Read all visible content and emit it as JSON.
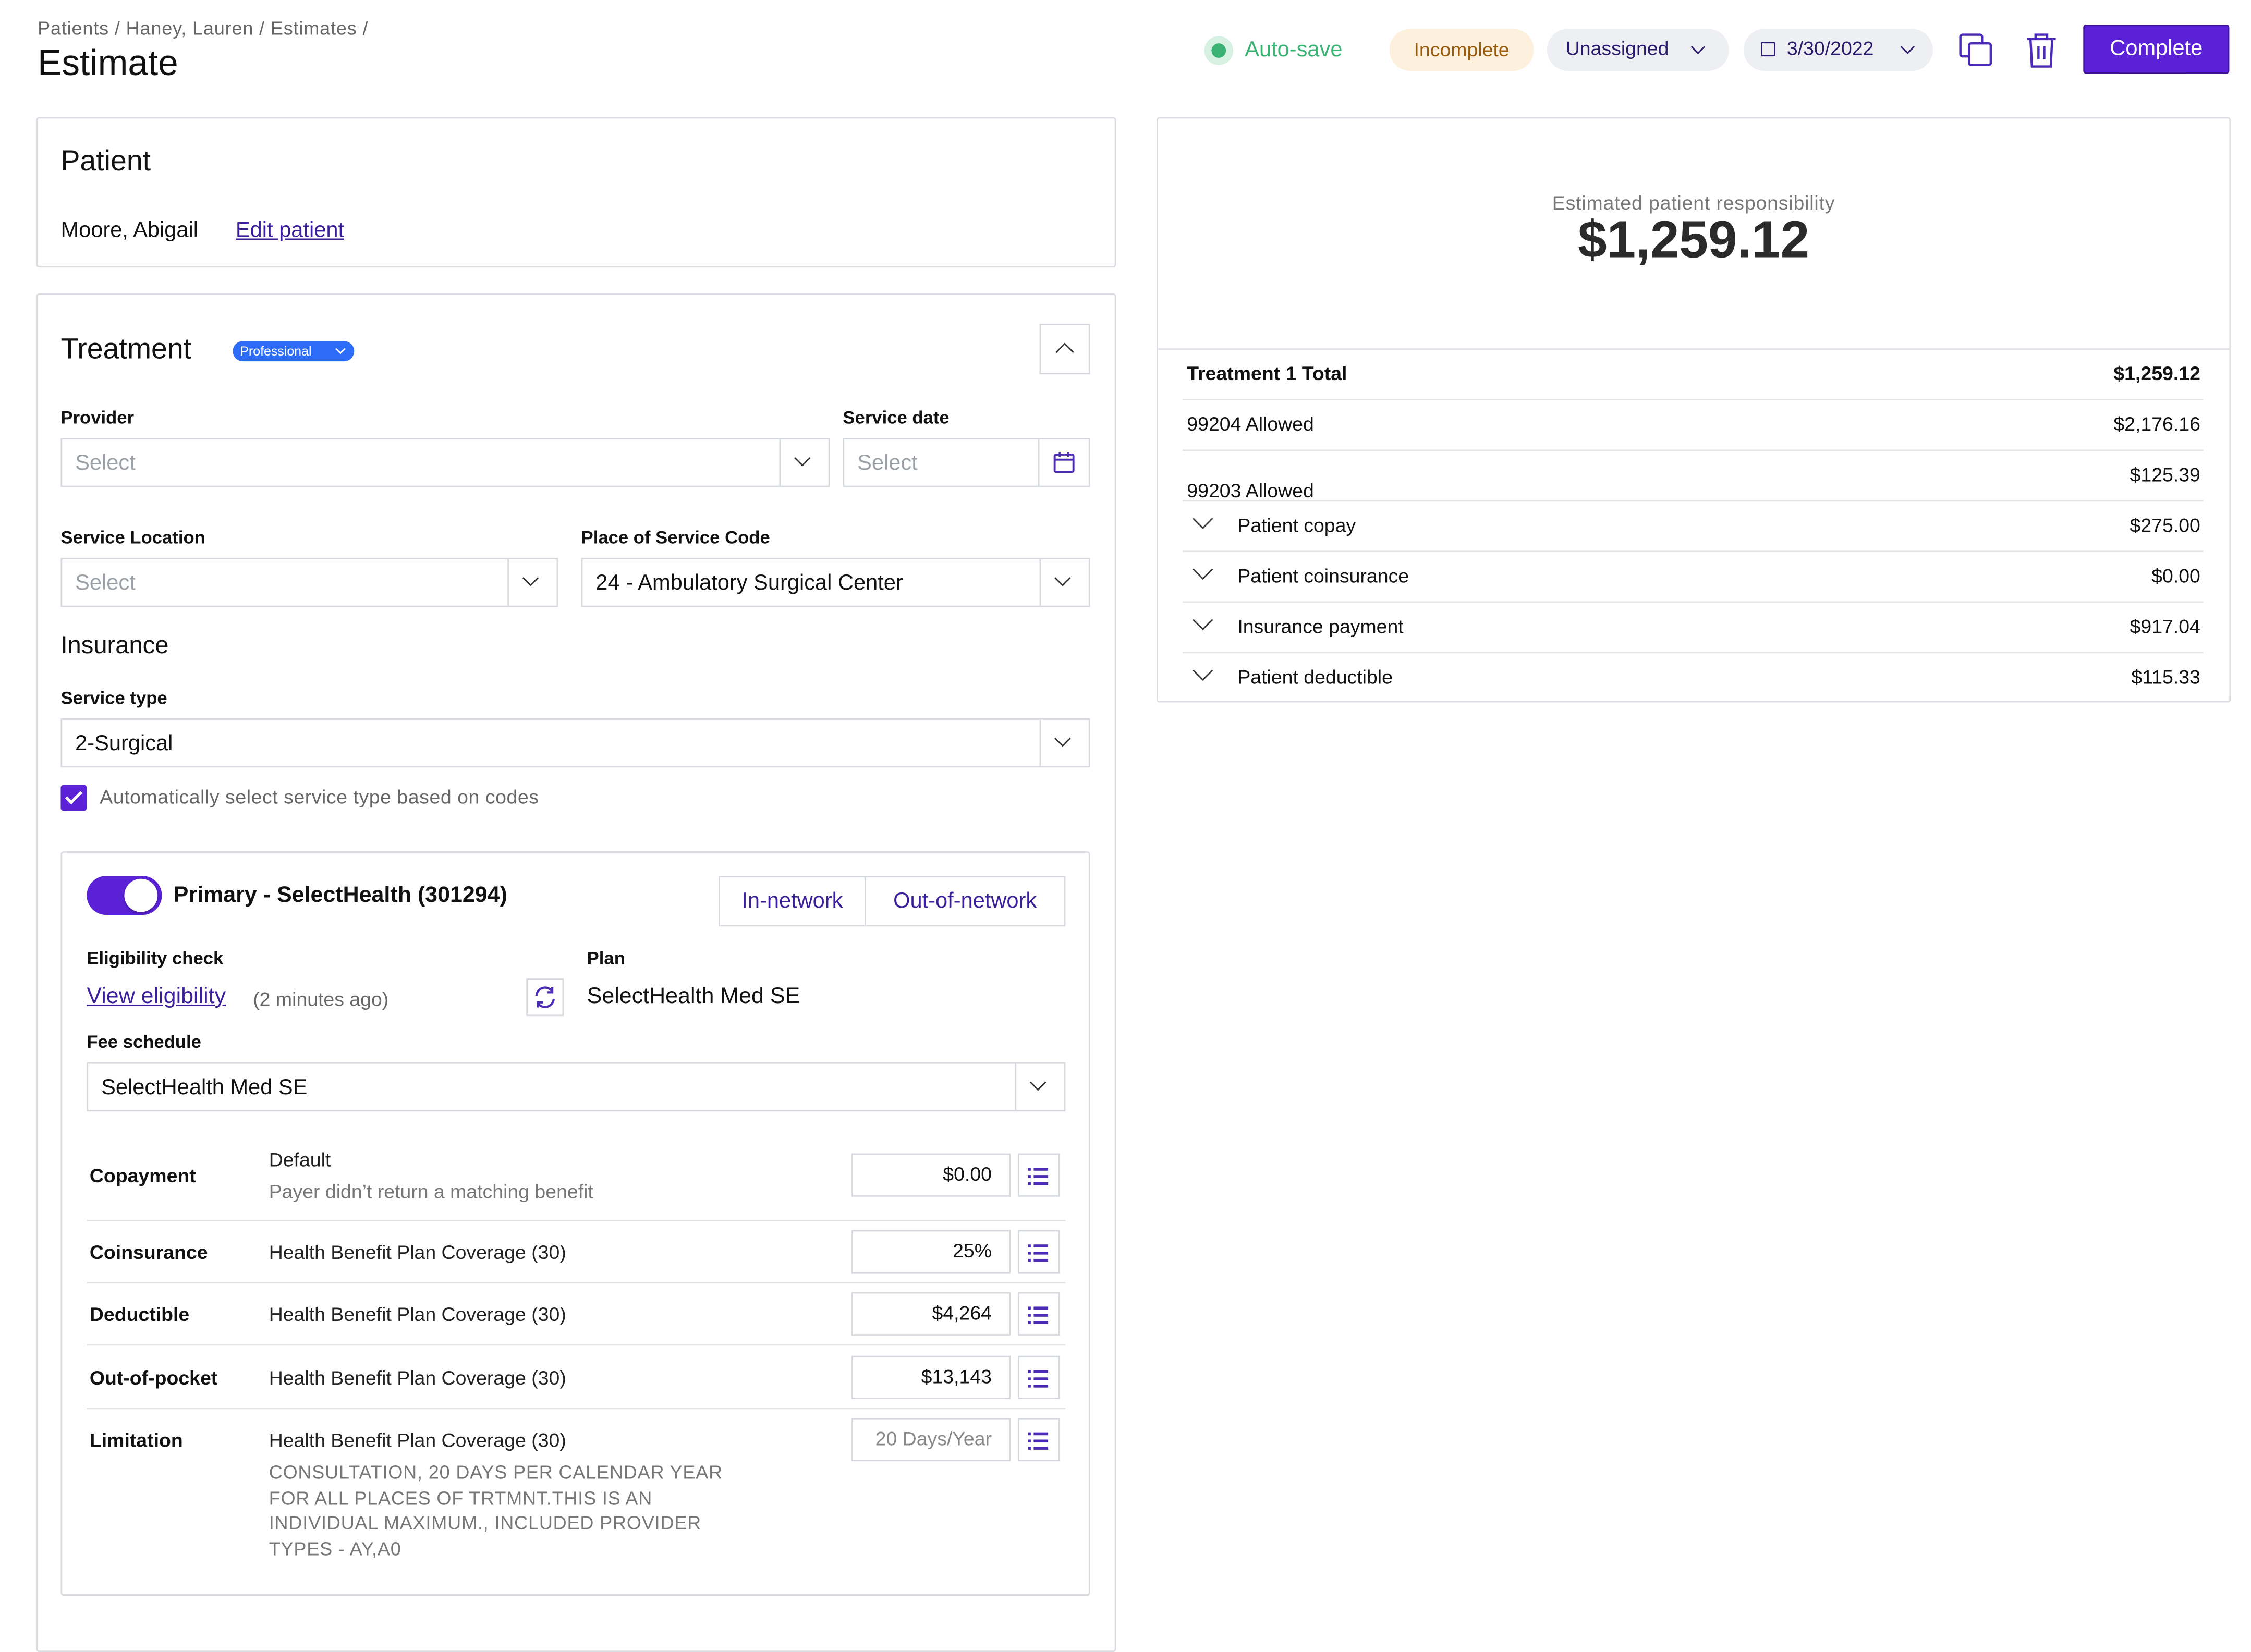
{
  "breadcrumb": [
    "Patients",
    "Haney, Lauren",
    "Estimates"
  ],
  "breadcrumb_sep": "/",
  "page_title": "Estimate",
  "header": {
    "autosave": "Auto-save",
    "status": "Incomplete",
    "assignee": "Unassigned",
    "date": "3/30/2022",
    "complete_label": "Complete"
  },
  "patient": {
    "heading": "Patient",
    "name": "Moore, Abigail",
    "edit_link": "Edit patient"
  },
  "treatment": {
    "heading": "Treatment",
    "badge": "Professional",
    "provider_label": "Provider",
    "provider_placeholder": "Select",
    "service_date_label": "Service date",
    "service_date_placeholder": "Select",
    "service_location_label": "Service Location",
    "service_location_placeholder": "Select",
    "pos_label": "Place of Service Code",
    "pos_value": "24 - Ambulatory Surgical Center"
  },
  "insurance": {
    "heading": "Insurance",
    "service_type_label": "Service type",
    "service_type_value": "2-Surgical",
    "auto_select_label": "Automatically select service type based on codes",
    "primary_title": "Primary - SelectHealth (301294)",
    "in_network": "In-network",
    "out_network": "Out-of-network",
    "eligibility_label": "Eligibility check",
    "view_eligibility": "View eligibility",
    "eligibility_time": "(2 minutes ago)",
    "plan_label": "Plan",
    "plan_value": "SelectHealth Med SE",
    "fee_schedule_label": "Fee schedule",
    "fee_schedule_value": "SelectHealth Med SE",
    "benefits": [
      {
        "label": "Copayment",
        "source": "Default",
        "note": "Payer didn’t return a matching benefit",
        "value": "$0.00"
      },
      {
        "label": "Coinsurance",
        "source": "Health Benefit Plan Coverage (30)",
        "value": "25%"
      },
      {
        "label": "Deductible",
        "source": "Health Benefit Plan Coverage (30)",
        "value": "$4,264"
      },
      {
        "label": "Out-of-pocket",
        "source": "Health Benefit Plan Coverage (30)",
        "value": "$13,143"
      },
      {
        "label": "Limitation",
        "source": "Health Benefit Plan Coverage (30)",
        "placeholder": "20 Days/Year",
        "note_lines": [
          "CONSULTATION, 20 DAYS PER CALENDAR YEAR",
          "FOR ALL PLACES OF TRTMNT.THIS IS AN",
          "INDIVIDUAL MAXIMUM., INCLUDED PROVIDER",
          "TYPES - AY,A0"
        ]
      }
    ]
  },
  "summary": {
    "resp_label": "Estimated patient responsibility",
    "resp_amount": "$1,259.12",
    "total_label": "Treatment 1 Total",
    "total_value": "$1,259.12",
    "rows": [
      {
        "label": "99204 Allowed",
        "value": "$2,176.16"
      },
      {
        "label": "99203 Allowed",
        "value": "$125.39"
      },
      {
        "label": "Patient copay",
        "value": "$275.00"
      },
      {
        "label": "Patient coinsurance",
        "value": "$0.00"
      },
      {
        "label": "Insurance payment",
        "value": "$917.04"
      },
      {
        "label": "Patient deductible",
        "value": "$115.33"
      }
    ]
  },
  "colors": {
    "accent": "#5b21d6",
    "link": "#3a1e9a",
    "autosave": "#3bb273",
    "status_bg": "#fdf1dd",
    "status_text": "#9a5b0b",
    "badge": "#2d6cf6"
  }
}
